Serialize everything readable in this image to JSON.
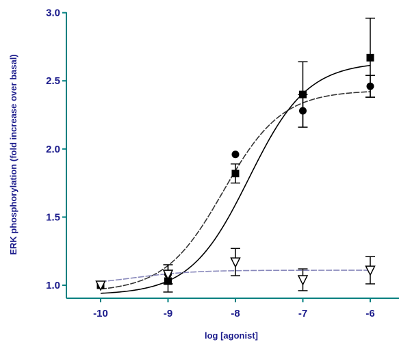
{
  "chart_data": {
    "type": "scatter",
    "xlabel": "log [agonist]",
    "ylabel": "ERK phosphorylation (fold increase over basal)",
    "xlim": [
      -10.5,
      -5.7
    ],
    "ylim": [
      0.95,
      3.0
    ],
    "x_ticks": [
      -10,
      -9,
      -8,
      -7,
      -6
    ],
    "x_tick_labels": [
      "-10",
      "-9",
      "-8",
      "-7",
      "-6"
    ],
    "y_ticks": [
      1.0,
      1.5,
      2.0,
      2.5,
      3.0
    ],
    "y_tick_labels": [
      "1.0",
      "1.5",
      "2.0",
      "2.5",
      "3.0"
    ],
    "axis_color": "#008080",
    "label_color": "#1c1c8c",
    "grid": false,
    "series": [
      {
        "marker": "square",
        "curve_style": "solid",
        "curve_color": "#000000",
        "x": [
          -10,
          -9,
          -8,
          -7,
          -6
        ],
        "y": [
          1.0,
          1.03,
          1.82,
          2.4,
          2.67
        ],
        "err": [
          0.0,
          0.08,
          0.07,
          0.24,
          0.29
        ],
        "fit": {
          "bottom": 0.93,
          "top": 2.64,
          "logEC50": -7.8,
          "hill": 1.0
        }
      },
      {
        "marker": "circle",
        "curve_style": "dashed",
        "curve_color": "#333333",
        "x": [
          -10,
          -9,
          -8,
          -7,
          -6
        ],
        "y": [
          1.0,
          1.08,
          1.96,
          2.28,
          2.46
        ],
        "err": [
          0.0,
          0.07,
          0.0,
          0.12,
          0.08
        ],
        "fit": {
          "bottom": 0.95,
          "top": 2.43,
          "logEC50": -8.18,
          "hill": 1.0
        }
      },
      {
        "marker": "triangle-down-open",
        "curve_style": "dashed",
        "curve_color": "#8888bb",
        "x": [
          -10,
          -9,
          -8,
          -7,
          -6
        ],
        "y": [
          1.0,
          1.08,
          1.17,
          1.04,
          1.11
        ],
        "err": [
          0.0,
          0.07,
          0.1,
          0.08,
          0.1
        ],
        "fit": {
          "bottom": 1.0,
          "top": 1.11,
          "logEC50": -9.5,
          "hill": 1.0
        }
      }
    ]
  }
}
